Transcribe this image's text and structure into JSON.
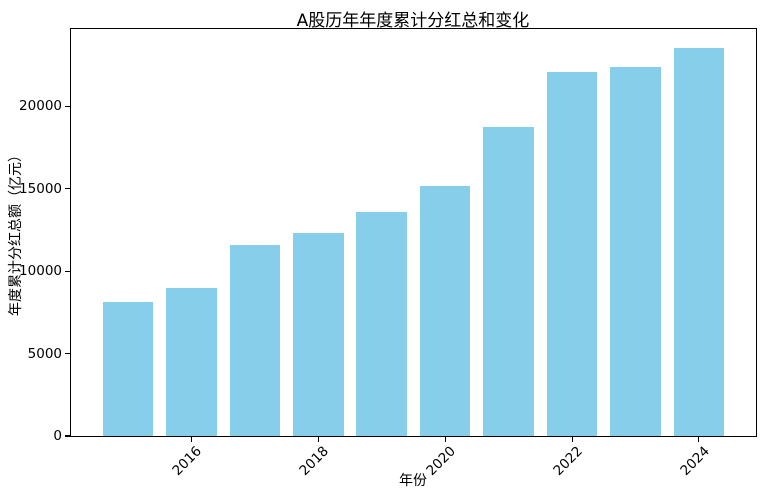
{
  "chart_data": {
    "type": "bar",
    "title": "A股历年年度累计分红总和变化",
    "xlabel": "年份",
    "ylabel": "年度累计分红总额（亿元）",
    "categories": [
      2015,
      2016,
      2017,
      2018,
      2019,
      2020,
      2021,
      2022,
      2023,
      2024
    ],
    "values": [
      8110,
      9000,
      11620,
      12350,
      13590,
      15150,
      18730,
      22100,
      22400,
      23570
    ],
    "series_name": "年度累计分红总额",
    "bar_color": "#87CEEB",
    "background_color": "#FFFFFF",
    "spine_color": "#000000",
    "ylim": [
      0,
      24700
    ],
    "yticks": [
      0,
      5000,
      10000,
      15000,
      20000
    ],
    "xticks": [
      2016,
      2018,
      2020,
      2022,
      2024
    ],
    "xlim": [
      2014.1,
      2024.9
    ],
    "bar_width": 0.8,
    "grid": false,
    "legend": "none",
    "x_tick_rotation_deg": 45
  }
}
